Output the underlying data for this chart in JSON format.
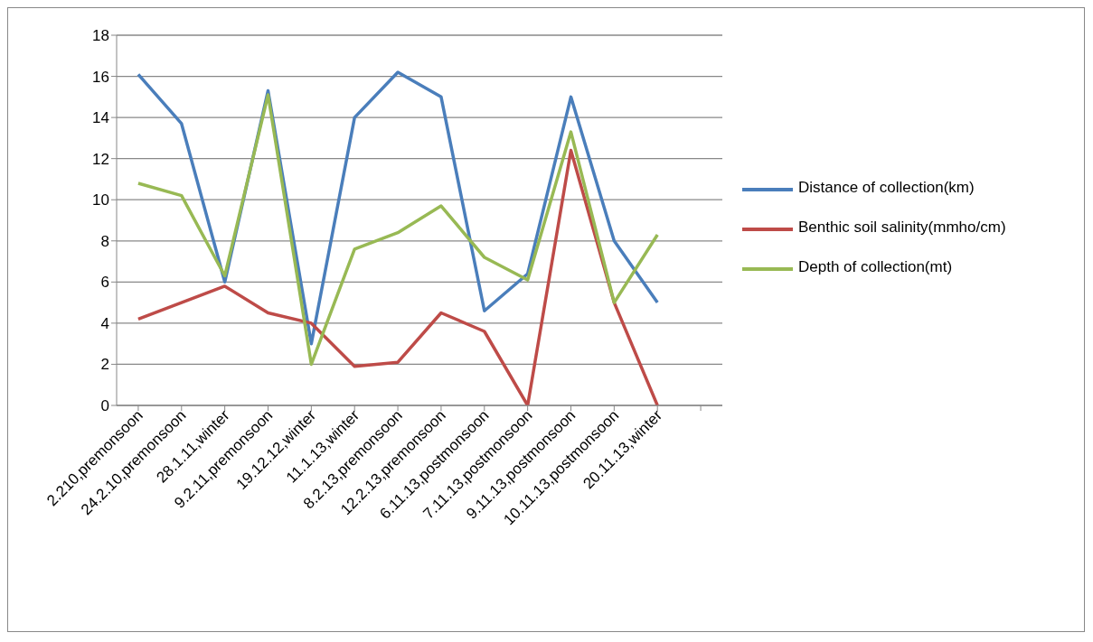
{
  "chart_data": {
    "type": "line",
    "categories": [
      "2.210,premonsoon",
      "24.2.10,premonsoon",
      "28.1.11,winter",
      "9.2.11,premonsoon",
      "19.12.12,winter",
      "11.1.13,winter",
      "8.2.13,premonsoon",
      "12.2.13,premonsoon",
      "6.11.13,postmonsoon",
      "7.11.13,postmonsoon",
      "9.11.13,postmonsoon",
      "10.11.13,postmonsoon",
      "20.11.13,winter",
      null
    ],
    "series": [
      {
        "name": "Distance of collection(km)",
        "color": "#4a7ebb",
        "values": [
          16.1,
          13.7,
          6.0,
          15.3,
          3.0,
          14.0,
          16.2,
          15.0,
          4.6,
          6.4,
          15.0,
          8.0,
          5.0,
          null
        ]
      },
      {
        "name": "Benthic soil salinity(mmho/cm)",
        "color": "#be4b48",
        "values": [
          4.2,
          5.0,
          5.8,
          4.5,
          4.0,
          1.9,
          2.1,
          4.5,
          3.6,
          0,
          12.4,
          5.0,
          0,
          null
        ]
      },
      {
        "name": "Depth of collection(mt)",
        "color": "#98b954",
        "values": [
          10.8,
          10.2,
          6.3,
          15.1,
          2.0,
          7.6,
          8.4,
          9.7,
          7.2,
          6.1,
          13.3,
          5.0,
          8.3,
          null
        ]
      }
    ],
    "ylim": [
      0,
      18
    ],
    "yticks": [
      0,
      2,
      4,
      6,
      8,
      10,
      12,
      14,
      16,
      18
    ],
    "grid": "y",
    "legend": "right",
    "marker": "none",
    "line_style": "solid"
  }
}
